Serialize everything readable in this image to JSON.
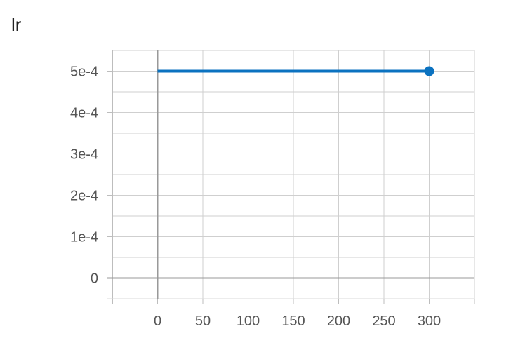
{
  "chart_data": {
    "type": "line",
    "title": "lr",
    "xlabel": "",
    "ylabel": "",
    "xlim": [
      -50,
      350
    ],
    "ylim": [
      -5e-05,
      0.00055
    ],
    "x_ticks": [
      "0",
      "50",
      "100",
      "150",
      "200",
      "250",
      "300"
    ],
    "y_ticks": [
      "0",
      "1e-4",
      "2e-4",
      "3e-4",
      "4e-4",
      "5e-4"
    ],
    "grid": true,
    "series": [
      {
        "color": "#0b72c0",
        "x": [
          0,
          300
        ],
        "y": [
          0.0005,
          0.0005
        ]
      }
    ]
  }
}
